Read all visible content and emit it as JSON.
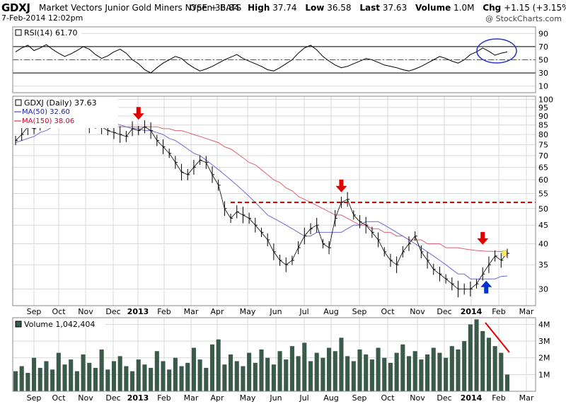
{
  "header": {
    "symbol": "GDXJ",
    "name": "Market Vectors Junior Gold Miners",
    "exchange": "NYSE + BATS",
    "datetime": "7-Feb-2014 12:02pm",
    "open_label": "Open",
    "open": "36.84",
    "high_label": "High",
    "high": "37.74",
    "low_label": "Low",
    "low": "36.58",
    "last_label": "Last",
    "last": "37.63",
    "volume_label": "Volume",
    "volume": "1.0M",
    "chg_label": "Chg",
    "chg": "+1.15 (+3.15%)",
    "brand": "@ StockCharts.com"
  },
  "colors": {
    "price": "#000000",
    "ma50": "#6b6bd6",
    "ma150": "#e06070",
    "ma150_text": "#cc0033",
    "ma50_text": "#1a1a9c",
    "resistance": "#e00000",
    "arrow_down": "#e00000",
    "arrow_up": "#0033cc",
    "circle": "#2233cc",
    "volume": "#3a5a4a",
    "rsi_fill": "#8a6a6a",
    "grid": "#d8d8d8"
  },
  "chart_data": [
    {
      "type": "line",
      "panel": "rsi",
      "label": "RSI(14) 61.70",
      "ylim": [
        0,
        100
      ],
      "yticks": [
        10,
        30,
        50,
        70,
        90
      ],
      "levels": [
        70,
        50,
        30
      ],
      "series": [
        {
          "name": "RSI(14)",
          "values": [
            62,
            68,
            72,
            64,
            68,
            73,
            66,
            60,
            55,
            59,
            64,
            70,
            66,
            58,
            52,
            56,
            62,
            66,
            60,
            50,
            44,
            35,
            30,
            38,
            45,
            50,
            55,
            52,
            44,
            38,
            33,
            36,
            40,
            45,
            50,
            54,
            58,
            52,
            48,
            44,
            40,
            35,
            33,
            38,
            44,
            50,
            60,
            68,
            72,
            65,
            55,
            48,
            42,
            38,
            40,
            44,
            48,
            52,
            50,
            46,
            42,
            40,
            38,
            35,
            33,
            36,
            40,
            45,
            50,
            55,
            52,
            48,
            45,
            50,
            58,
            62,
            68,
            63,
            57,
            60,
            62
          ]
        }
      ]
    },
    {
      "type": "line",
      "panel": "price",
      "label": "GDXJ (Daily) 37.63",
      "yscale": "log",
      "ylim": [
        27,
        102
      ],
      "yticks": [
        30,
        35,
        40,
        45,
        50,
        55,
        60,
        65,
        70,
        75,
        80,
        85,
        90,
        95,
        100
      ],
      "xticks": [
        "Sep",
        "Oct",
        "Nov",
        "Dec",
        "2013",
        "Feb",
        "Mar",
        "Apr",
        "May",
        "Jun",
        "Jul",
        "Aug",
        "Sep",
        "Oct",
        "Nov",
        "Dec",
        "2014",
        "Feb",
        "Mar"
      ],
      "series": [
        {
          "name": "GDXJ",
          "values": [
            77,
            80,
            84,
            83,
            86,
            86,
            88,
            89,
            91,
            92,
            93,
            91,
            85,
            86,
            84,
            82,
            81,
            80,
            79,
            83,
            82,
            84,
            82,
            77,
            74,
            71,
            67,
            63,
            62,
            65,
            68,
            67,
            62,
            58,
            50,
            47,
            49,
            48,
            47,
            45,
            43,
            41,
            38,
            36,
            35,
            36,
            39,
            42,
            44,
            45,
            40,
            39,
            47,
            52,
            53,
            48,
            46,
            45,
            43,
            41,
            38,
            36,
            35,
            38,
            40,
            42,
            38,
            36,
            34,
            33,
            32,
            31,
            30,
            30,
            30,
            31,
            33,
            35,
            37,
            36,
            37.63
          ]
        },
        {
          "name": "MA(50) 32.60",
          "values": [
            76,
            77,
            78,
            79,
            81,
            82,
            84,
            85,
            86,
            88,
            89,
            90,
            90,
            89,
            88,
            87,
            86,
            85,
            84,
            83,
            83,
            82,
            82,
            81,
            80,
            78,
            77,
            75,
            73,
            71,
            70,
            68,
            66,
            64,
            62,
            60,
            58,
            56,
            54,
            52,
            50,
            48,
            47,
            46,
            45,
            44,
            43,
            42,
            42,
            43,
            43,
            43,
            43,
            43,
            44,
            45,
            45,
            46,
            46,
            46,
            45,
            44,
            43,
            42,
            41,
            40,
            39,
            38,
            37,
            36,
            35,
            34,
            33,
            33,
            32,
            32,
            32,
            32,
            32,
            32.5,
            32.6
          ]
        },
        {
          "name": "MA(150) 38.06",
          "values": [
            88,
            88,
            87,
            87,
            86,
            86,
            85,
            85,
            85,
            85,
            85,
            85,
            84,
            84,
            84,
            84,
            84,
            84,
            84,
            84,
            84,
            84,
            84,
            84,
            83,
            83,
            82,
            82,
            81,
            80,
            79,
            78,
            77,
            76,
            74,
            73,
            71,
            69,
            67,
            66,
            64,
            62,
            60,
            59,
            57,
            56,
            54,
            53,
            52,
            51,
            50,
            49,
            48,
            48,
            47,
            46,
            45,
            45,
            44,
            44,
            43,
            43,
            42,
            42,
            41,
            41,
            41,
            40,
            40,
            40,
            39,
            39,
            39,
            38.7,
            38.5,
            38.3,
            38.2,
            38.1,
            38.1,
            38.06,
            38.06
          ]
        }
      ],
      "annotations": {
        "resistance_level": 52,
        "sell_arrows": [
          {
            "index": 20,
            "value": 84
          },
          {
            "index": 53,
            "value": 53
          },
          {
            "index": 76,
            "value": 38
          }
        ],
        "buy_arrow": {
          "index": 76,
          "value": 32.5
        }
      }
    },
    {
      "type": "bar",
      "panel": "volume",
      "label": "Volume 1,042,404",
      "ylim": [
        0,
        4400000
      ],
      "yticks": [
        "1M",
        "2M",
        "3M",
        "4M"
      ],
      "ytick_values": [
        1000000,
        2000000,
        3000000,
        4000000
      ],
      "xticks": [
        "Sep",
        "Oct",
        "Nov",
        "Dec",
        "2013",
        "Feb",
        "Mar",
        "Apr",
        "May",
        "Jun",
        "Jul",
        "Aug",
        "Sep",
        "Oct",
        "Nov",
        "Dec",
        "2014",
        "Feb",
        "Mar"
      ],
      "values": [
        1.2,
        1.5,
        1.1,
        2.0,
        1.4,
        1.8,
        1.3,
        2.3,
        1.6,
        1.9,
        1.2,
        2.2,
        1.7,
        1.4,
        2.5,
        1.3,
        1.8,
        2.1,
        1.5,
        1.2,
        1.9,
        1.6,
        1.4,
        2.4,
        1.8,
        1.3,
        2.0,
        1.5,
        1.7,
        2.6,
        1.9,
        1.4,
        2.8,
        3.1,
        1.6,
        2.2,
        1.8,
        1.5,
        2.3,
        1.7,
        2.5,
        2.0,
        1.6,
        2.4,
        1.9,
        2.7,
        2.1,
        2.9,
        1.8,
        2.3,
        2.0,
        2.6,
        2.4,
        3.2,
        2.1,
        1.8,
        2.5,
        2.2,
        1.9,
        2.6,
        2.0,
        1.7,
        2.3,
        2.8,
        2.1,
        2.4,
        1.9,
        2.2,
        2.6,
        2.3,
        2.0,
        2.7,
        2.5,
        3.0,
        4.0,
        4.3,
        3.6,
        3.2,
        2.7,
        2.3,
        1.0
      ]
    }
  ]
}
